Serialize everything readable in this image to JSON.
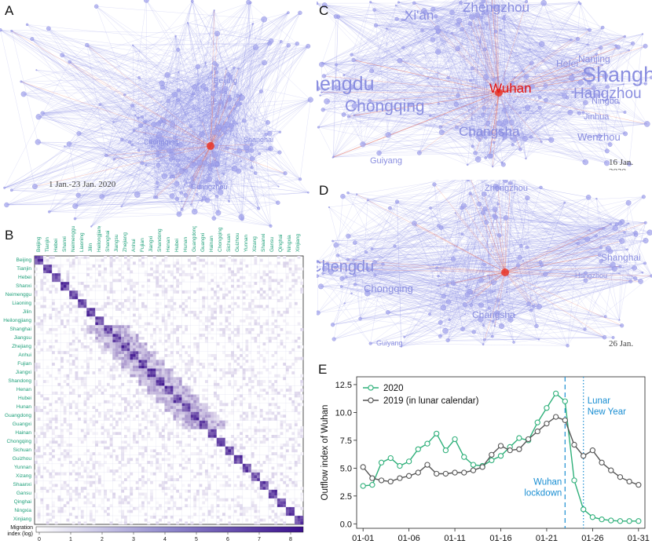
{
  "panels": {
    "A": {
      "label": "A",
      "date": "1 Jan.-23 Jan. 2020",
      "cities": [
        "Beijing",
        "Chongqing",
        "Shanghai",
        "Guangzhou"
      ]
    },
    "B": {
      "label": "B"
    },
    "C": {
      "label": "C",
      "date": "16 Jan. 2020",
      "cities": [
        "Xi'an",
        "Zhengzhou",
        "Chengdu",
        "Chongqing",
        "Wuhan",
        "Shanghai",
        "Hangzhou",
        "Ningbo",
        "Changsha",
        "Wenzhou",
        "Guiyang",
        "Hefei",
        "Nanjing",
        "Jinhua"
      ]
    },
    "D": {
      "label": "D",
      "date": "26 Jan. 2020",
      "cities": [
        "Zhengzhou",
        "Chengdu",
        "Chongqing",
        "Changsha",
        "Shanghai",
        "Hangzhou",
        "Guiyang"
      ]
    },
    "E": {
      "label": "E"
    }
  },
  "heatmap": {
    "provinces": [
      "Beijing",
      "Tianjin",
      "Hebei",
      "Shanxi",
      "Neimenggu",
      "Liaoning",
      "Jilin",
      "Heilongjiang",
      "Shanghai",
      "Jiangsu",
      "Zhejiang",
      "Anhui",
      "Fujian",
      "Jiangxi",
      "Shandong",
      "Henan",
      "Hubei",
      "Hunan",
      "Guangdong",
      "Guangxi",
      "Hainan",
      "Chongqing",
      "Sichuan",
      "Guizhou",
      "Yunnan",
      "Xizang",
      "Shaanxi",
      "Gansu",
      "Qinghai",
      "Ningxia",
      "Xinjiang"
    ],
    "colorbar_title": "Migration index (log)",
    "colorbar_ticks": [
      "0",
      "1",
      "2",
      "3",
      "4",
      "5",
      "6",
      "7",
      "8"
    ],
    "color_low": "#ffffff",
    "color_high": "#3a0f8c"
  },
  "chart_data": {
    "type": "line",
    "ylabel": "Outflow index of Wuhan",
    "xlabel": "",
    "ylim": [
      0,
      12.5
    ],
    "yticks": [
      "0.0",
      "2.5",
      "5.0",
      "7.5",
      "10.0",
      "12.5"
    ],
    "xtick_labels": [
      "01-01",
      "01-06",
      "01-11",
      "01-16",
      "01-21",
      "01-26",
      "01-31"
    ],
    "x": [
      1,
      2,
      3,
      4,
      5,
      6,
      7,
      8,
      9,
      10,
      11,
      12,
      13,
      14,
      15,
      16,
      17,
      18,
      19,
      20,
      21,
      22,
      23,
      24,
      25,
      26,
      27,
      28,
      29,
      30,
      31
    ],
    "series": [
      {
        "name": "2020",
        "color": "#2fb07a",
        "values": [
          3.4,
          3.5,
          5.5,
          5.9,
          5.2,
          5.6,
          6.7,
          7.2,
          8.1,
          6.6,
          7.6,
          6.0,
          5.3,
          5.2,
          5.7,
          6.1,
          6.9,
          7.7,
          7.5,
          9.1,
          10.4,
          11.7,
          11.0,
          3.9,
          1.3,
          0.6,
          0.4,
          0.3,
          0.25,
          0.25,
          0.25
        ]
      },
      {
        "name": "2019 (in lunar calendar)",
        "color": "#555555",
        "values": [
          5.1,
          4.1,
          3.9,
          3.8,
          4.1,
          4.3,
          4.6,
          5.3,
          4.5,
          4.5,
          4.6,
          4.6,
          4.8,
          5.1,
          6.2,
          7.0,
          6.6,
          6.7,
          7.6,
          8.3,
          9.0,
          9.6,
          9.3,
          7.1,
          6.1,
          6.6,
          5.5,
          4.8,
          4.2,
          3.8,
          3.5
        ]
      }
    ],
    "annotations": [
      {
        "label_lines": [
          "Wuhan",
          "lockdown"
        ],
        "x": 23,
        "color": "#1b8fd3",
        "style": "dashed"
      },
      {
        "label_lines": [
          "Lunar",
          "New Year"
        ],
        "x": 25,
        "color": "#1b8fd3",
        "style": "dotted"
      }
    ]
  }
}
